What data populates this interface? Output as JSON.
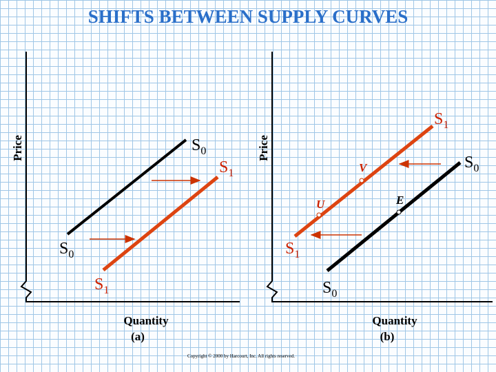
{
  "title": "SHIFTS BETWEEN SUPPLY CURVES",
  "panels": [
    {
      "y_label": "Price",
      "x_label": "Quantity",
      "caption": "(a)",
      "curves": [
        {
          "upper": {
            "letter": "S",
            "sub": "0"
          },
          "lower": {
            "letter": "S",
            "sub": "0"
          }
        },
        {
          "upper": {
            "letter": "S",
            "sub": "1"
          },
          "lower": {
            "letter": "S",
            "sub": "1"
          }
        }
      ]
    },
    {
      "y_label": "Price",
      "x_label": "Quantity",
      "caption": "(b)",
      "curves": [
        {
          "upper": {
            "letter": "S",
            "sub": "1"
          },
          "lower": {
            "letter": "S",
            "sub": "1"
          }
        },
        {
          "upper": {
            "letter": "S",
            "sub": "0"
          },
          "lower": {
            "letter": "S",
            "sub": "0"
          }
        }
      ],
      "points": [
        "V",
        "U",
        "E"
      ]
    }
  ],
  "copyright": "Copyright © 2000 by Harcourt, Inc. All rights reserved."
}
